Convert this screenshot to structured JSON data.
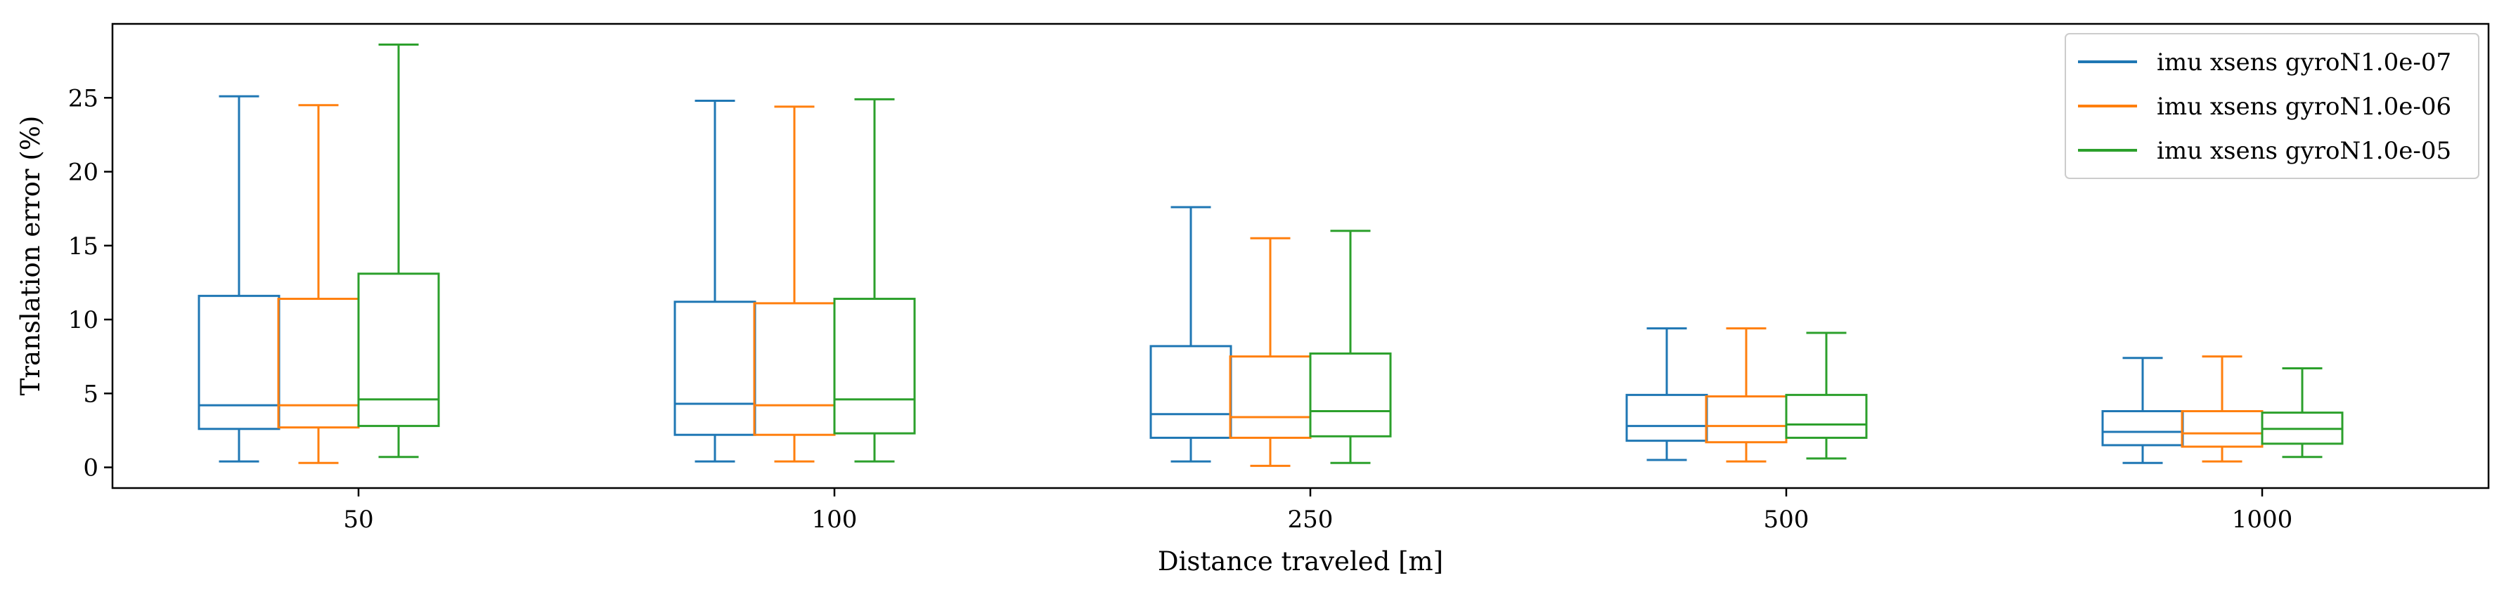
{
  "chart_data": {
    "type": "box",
    "xlabel": "Distance traveled [m]",
    "ylabel": "Translation error (%)",
    "categories": [
      "50",
      "100",
      "250",
      "500",
      "1000"
    ],
    "ylim": [
      -1.4,
      30.0
    ],
    "yticks": [
      0,
      5,
      10,
      15,
      20,
      25
    ],
    "grid": false,
    "legend_position": "top-right",
    "series": [
      {
        "name": "imu xsens gyroN1.0e-07",
        "color": "#1f77b4",
        "boxes": [
          {
            "whislo": 0.4,
            "q1": 2.6,
            "med": 4.2,
            "q3": 11.6,
            "whishi": 25.1
          },
          {
            "whislo": 0.4,
            "q1": 2.2,
            "med": 4.3,
            "q3": 11.2,
            "whishi": 24.8
          },
          {
            "whislo": 0.4,
            "q1": 2.0,
            "med": 3.6,
            "q3": 8.2,
            "whishi": 17.6
          },
          {
            "whislo": 0.5,
            "q1": 1.8,
            "med": 2.8,
            "q3": 4.9,
            "whishi": 9.4
          },
          {
            "whislo": 0.3,
            "q1": 1.5,
            "med": 2.4,
            "q3": 3.8,
            "whishi": 7.4
          }
        ]
      },
      {
        "name": "imu xsens gyroN1.0e-06",
        "color": "#ff7f0e",
        "boxes": [
          {
            "whislo": 0.3,
            "q1": 2.7,
            "med": 4.2,
            "q3": 11.4,
            "whishi": 24.5
          },
          {
            "whislo": 0.4,
            "q1": 2.2,
            "med": 4.2,
            "q3": 11.1,
            "whishi": 24.4
          },
          {
            "whislo": 0.1,
            "q1": 2.0,
            "med": 3.4,
            "q3": 7.5,
            "whishi": 15.5
          },
          {
            "whislo": 0.4,
            "q1": 1.7,
            "med": 2.8,
            "q3": 4.8,
            "whishi": 9.4
          },
          {
            "whislo": 0.4,
            "q1": 1.4,
            "med": 2.3,
            "q3": 3.8,
            "whishi": 7.5
          }
        ]
      },
      {
        "name": "imu xsens gyroN1.0e-05",
        "color": "#2ca02c",
        "boxes": [
          {
            "whislo": 0.7,
            "q1": 2.8,
            "med": 4.6,
            "q3": 13.1,
            "whishi": 28.6
          },
          {
            "whislo": 0.4,
            "q1": 2.3,
            "med": 4.6,
            "q3": 11.4,
            "whishi": 24.9
          },
          {
            "whislo": 0.3,
            "q1": 2.1,
            "med": 3.8,
            "q3": 7.7,
            "whishi": 16.0
          },
          {
            "whislo": 0.6,
            "q1": 2.0,
            "med": 2.9,
            "q3": 4.9,
            "whishi": 9.1
          },
          {
            "whislo": 0.7,
            "q1": 1.6,
            "med": 2.6,
            "q3": 3.7,
            "whishi": 6.7
          }
        ]
      }
    ]
  }
}
